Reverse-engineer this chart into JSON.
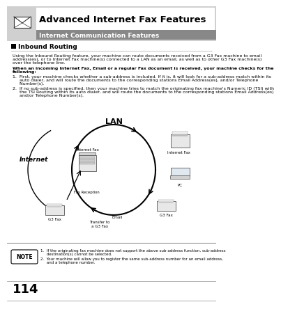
{
  "title": "Advanced Internet Fax Features",
  "subtitle": "Internet Communication Features",
  "section_title": "Inbound Routing",
  "body_text1": "Using the Inbound Routing feature, your machine can route documents received from a G3 Fax machine to email\naddress(es), or to Internet Fax machine(s) connected to a LAN as an email, as well as to other G3 Fax machine(s)\nover the telephone line.",
  "body_bold": "When an incoming Internet Fax, Email or a regular Fax document is received, your machine checks for the\nfollowing:",
  "item1": "1.  First, your machine checks whether a sub-address is included. If it is, it will look for a sub-address match within its\n     auto dialer, and will route the documents to the corresponding stations Email Address(es), and/or Telephone\n     Number(s).",
  "item2": "2.  If no sub-address is specified, then your machine tries to match the originating fax machine's Numeric ID (TSI) with\n     the TSI Routing within its auto dialer, and will route the documents to the corresponding stations Email Address(es)\n     and/or Telephone Number(s).",
  "note_title": "NOTE",
  "note1": "1.  If the originating fax machine does not support the above sub-address function, sub-address\n     destination(s) cannot be selected.",
  "note2": "2.  Your machine will allow you to register the same sub-address number for an email address,\n     and a telephone number.",
  "page_number": "114",
  "bg_color": "#ffffff",
  "header_gray": "#d0d0d0",
  "subtitle_gray": "#888888",
  "diagram_label_lan": "LAN",
  "diagram_label_internet": "Internet",
  "diagram_label_internet_fax_top": "Internet Fax",
  "diagram_label_internet_fax_right": "Internet Fax",
  "diagram_label_pc": "PC",
  "diagram_label_g3fax_right": "G3 Fax",
  "diagram_label_fax_reception": "Fax Reception",
  "diagram_label_g3fax_left": "G3 Fax",
  "diagram_label_email": "Email",
  "diagram_label_transfer": "Transfer to\na G3 Fax"
}
